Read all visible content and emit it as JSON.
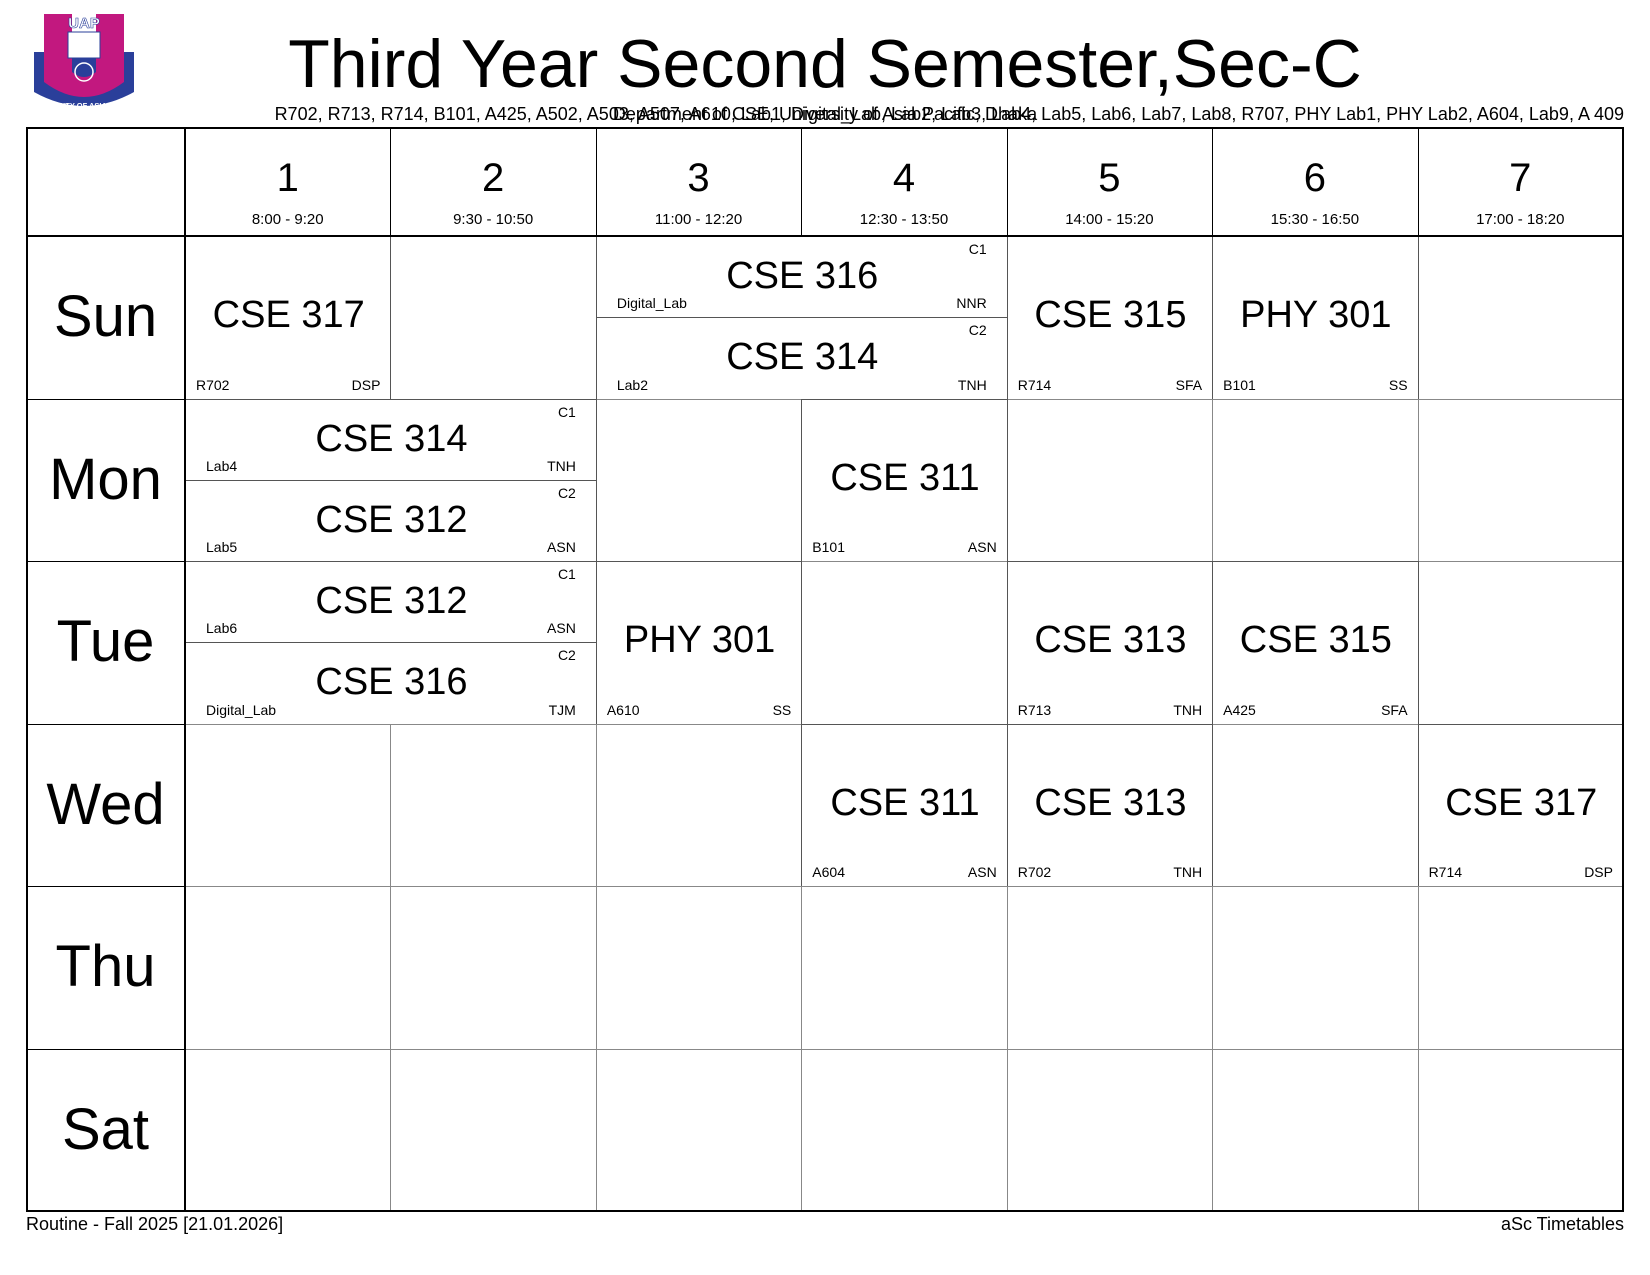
{
  "logo": {
    "abbr": "UAP",
    "name": "UNIVERSITY OF ASIA PACIFIC"
  },
  "header": {
    "title": "Third Year Second Semester,Sec-C",
    "rooms": "R702, R713, R714, B101, A425, A502, A503, A507, A610, Lab1, Digital_Lab, Lab2, Lab3, Lab4, Lab5, Lab6, Lab7, Lab8, R707, PHY Lab1, PHY Lab2, A604, Lab9, A 409",
    "department": "Department of CSE, University of Asia Pacific, Dhaka"
  },
  "periods": [
    {
      "number": "1",
      "time": "8:00 - 9:20"
    },
    {
      "number": "2",
      "time": "9:30 - 10:50"
    },
    {
      "number": "3",
      "time": "11:00 - 12:20"
    },
    {
      "number": "4",
      "time": "12:30 - 13:50"
    },
    {
      "number": "5",
      "time": "14:00 - 15:20"
    },
    {
      "number": "6",
      "time": "15:30 - 16:50"
    },
    {
      "number": "7",
      "time": "17:00 - 18:20"
    }
  ],
  "rows": [
    {
      "day": "Sun",
      "lessons": [
        {
          "course": "CSE 317",
          "room": "R702",
          "teacher": "DSP"
        },
        {
          "course": "CSE 316",
          "group": "C1",
          "room": "Digital_Lab",
          "teacher": "NNR"
        },
        {
          "course": "CSE 314",
          "group": "C2",
          "room": "Lab2",
          "teacher": "TNH"
        },
        {
          "course": "CSE 315",
          "room": "R714",
          "teacher": "SFA"
        },
        {
          "course": "PHY 301",
          "room": "B101",
          "teacher": "SS"
        }
      ]
    },
    {
      "day": "Mon",
      "lessons": [
        {
          "course": "CSE 314",
          "group": "C1",
          "room": "Lab4",
          "teacher": "TNH"
        },
        {
          "course": "CSE 312",
          "group": "C2",
          "room": "Lab5",
          "teacher": "ASN"
        },
        {
          "course": "CSE 311",
          "room": "B101",
          "teacher": "ASN"
        }
      ]
    },
    {
      "day": "Tue",
      "lessons": [
        {
          "course": "CSE 312",
          "group": "C1",
          "room": "Lab6",
          "teacher": "ASN"
        },
        {
          "course": "CSE 316",
          "group": "C2",
          "room": "Digital_Lab",
          "teacher": "TJM"
        },
        {
          "course": "PHY 301",
          "room": "A610",
          "teacher": "SS"
        },
        {
          "course": "CSE 313",
          "room": "R713",
          "teacher": "TNH"
        },
        {
          "course": "CSE 315",
          "room": "A425",
          "teacher": "SFA"
        }
      ]
    },
    {
      "day": "Wed",
      "lessons": [
        {
          "course": "CSE 311",
          "room": "A604",
          "teacher": "ASN"
        },
        {
          "course": "CSE 313",
          "room": "R702",
          "teacher": "TNH"
        },
        {
          "course": "CSE 317",
          "room": "R714",
          "teacher": "DSP"
        }
      ]
    },
    {
      "day": "Thu",
      "lessons": []
    },
    {
      "day": "Sat",
      "lessons": []
    }
  ],
  "footer": {
    "left": "Routine - Fall 2025 [21.01.2026]",
    "right": "aSc Timetables"
  }
}
